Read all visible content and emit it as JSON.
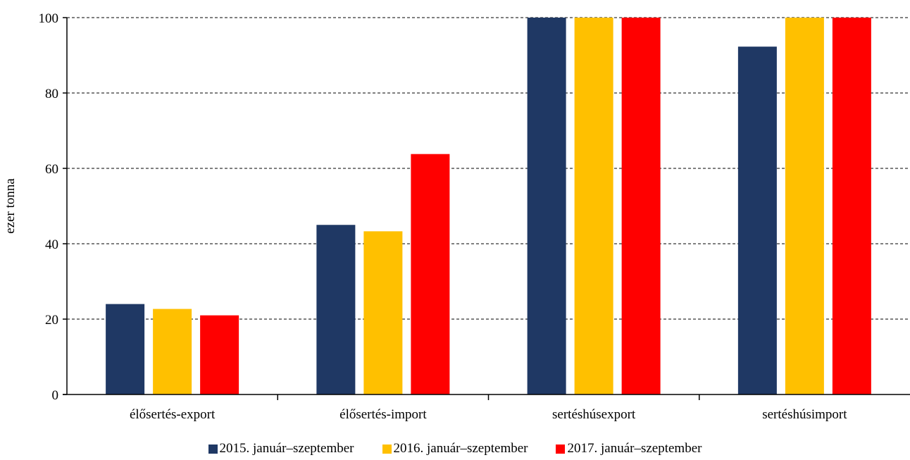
{
  "chart_data": {
    "type": "bar",
    "categories": [
      "élősertés-export",
      "élősertés-import",
      "sertéshúsexport",
      "sertéshúsimport"
    ],
    "series": [
      {
        "name": "2015. január–szeptember",
        "values": [
          24,
          45,
          100,
          92.3
        ],
        "color": "#1F3864"
      },
      {
        "name": "2016. január–szeptember",
        "values": [
          22.7,
          43.3,
          100,
          100
        ],
        "color": "#FFC000"
      },
      {
        "name": "2017. január–szeptember",
        "values": [
          21,
          63.8,
          100,
          100
        ],
        "color": "#FF0000"
      }
    ],
    "ylabel": "ezer tonna",
    "ylim": [
      0,
      100
    ],
    "yticks": [
      0,
      20,
      40,
      60,
      80,
      100
    ],
    "grid": true,
    "grid_style": "dashed",
    "legend_position": "bottom"
  }
}
